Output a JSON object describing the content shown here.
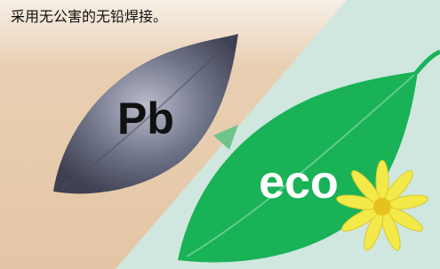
{
  "caption": "采用无公害的无铅焊接。",
  "labels": {
    "pb": "Pb",
    "eco": "eco"
  }
}
